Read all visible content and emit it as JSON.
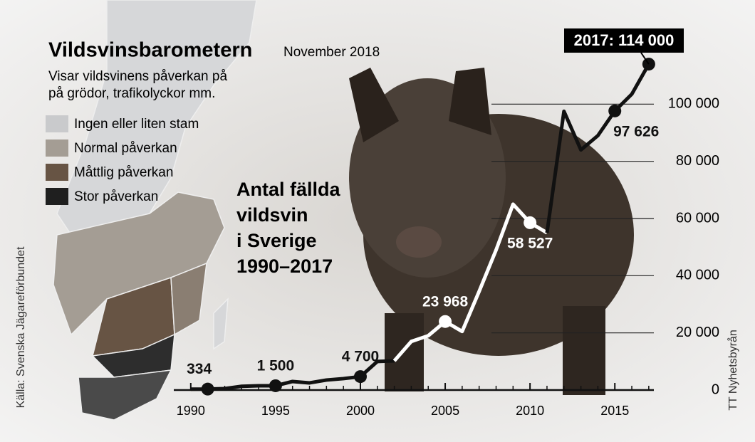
{
  "chart_data": {
    "type": "line",
    "title": "Vildsvinsbarometern",
    "date": "November 2018",
    "subtitle": [
      "Visar vildsvinens påverkan på",
      "på grödor, trafikolyckor mm."
    ],
    "map_legend": [
      {
        "name": "Ingen eller liten stam",
        "color": "#c9cacc"
      },
      {
        "name": "Normal påverkan",
        "color": "#a49d94"
      },
      {
        "name": "Måttlig påverkan",
        "color": "#675444"
      },
      {
        "name": "Stor påverkan",
        "color": "#1f1f1f"
      }
    ],
    "chart_title": [
      "Antal fällda",
      "vildsvin",
      "i Sverige",
      "1990–2017"
    ],
    "source": "Källa: Svenska Jägareförbundet",
    "credit": "TT Nyhetsbyrån",
    "x": [
      1990,
      1991,
      1992,
      1993,
      1994,
      1995,
      1996,
      1997,
      1998,
      1999,
      2000,
      2001,
      2002,
      2003,
      2004,
      2005,
      2006,
      2007,
      2008,
      2009,
      2010,
      2011,
      2012,
      2013,
      2014,
      2015,
      2016,
      2017
    ],
    "values": [
      300,
      334,
      500,
      1300,
      1500,
      1500,
      3000,
      2500,
      3500,
      4000,
      4700,
      10000,
      10200,
      17000,
      19000,
      23968,
      20500,
      34500,
      49000,
      65000,
      58527,
      55000,
      97500,
      84000,
      89000,
      97626,
      103500,
      114000
    ],
    "value_labels": [
      null,
      "334",
      null,
      null,
      null,
      "1 500",
      null,
      null,
      null,
      null,
      "4 700",
      null,
      null,
      null,
      null,
      "23 968",
      null,
      null,
      null,
      null,
      "58 527",
      null,
      null,
      null,
      null,
      "97 626",
      null,
      "2017: 114 000"
    ],
    "segment_colors": [
      "#111",
      "#111",
      "#111",
      "#111",
      "#111",
      "#111",
      "#111",
      "#111",
      "#111",
      "#111",
      "#111",
      "#111",
      "#fff",
      "#fff",
      "#fff",
      "#fff",
      "#fff",
      "#fff",
      "#fff",
      "#fff",
      "#fff",
      "#111",
      "#111",
      "#111",
      "#111",
      "#111",
      "#111"
    ],
    "xlim": [
      1989,
      2017.3
    ],
    "ylim": [
      0,
      120000
    ],
    "xticks": [
      1990,
      1995,
      2000,
      2005,
      2010,
      2015
    ],
    "yticks": [
      0,
      {
        "value": 20000,
        "label": "20 000"
      },
      {
        "value": 40000,
        "label": "40 000"
      },
      {
        "value": 60000,
        "label": "60 000"
      },
      {
        "value": 80000,
        "label": "80 000"
      },
      {
        "value": 100000,
        "label": "100 000"
      }
    ]
  }
}
